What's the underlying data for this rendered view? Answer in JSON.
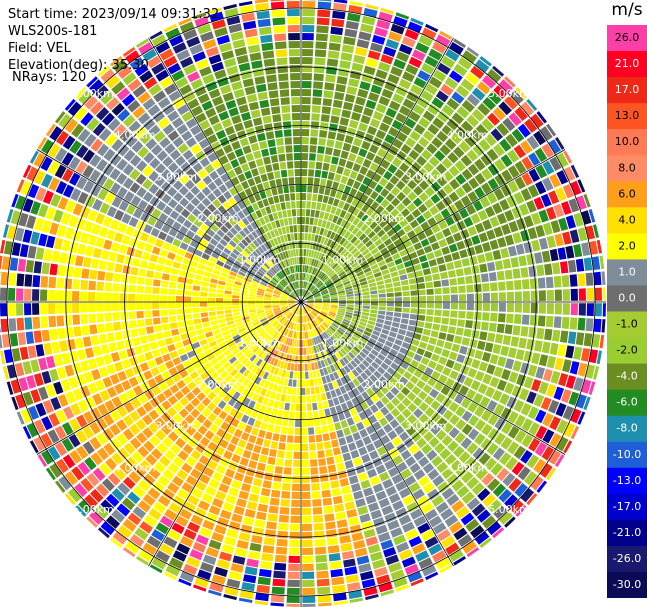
{
  "header": {
    "start_time": "Start time: 2023/09/14 09:31:32",
    "instrument": "WLS200s-181",
    "field": "Field: VEL",
    "elevation": "Elevation(deg): 35.30",
    "nrays": "NRays: 120"
  },
  "range_labels": [
    "1.00km",
    "2.00km",
    "3.00km",
    "4.00km",
    "5.00km"
  ],
  "colorbar": {
    "unit": "m/s",
    "levels": [
      {
        "label": "26.0",
        "color": "#ff3fa8"
      },
      {
        "label": "21.0",
        "color": "#ff0022"
      },
      {
        "label": "17.0",
        "color": "#f02818"
      },
      {
        "label": "13.0",
        "color": "#ff5522"
      },
      {
        "label": "10.0",
        "color": "#ff7a55"
      },
      {
        "label": "8.0",
        "color": "#ff8c66"
      },
      {
        "label": "6.0",
        "color": "#ff9f1a"
      },
      {
        "label": "4.0",
        "color": "#ffe000"
      },
      {
        "label": "2.0",
        "color": "#ffff00"
      },
      {
        "label": "1.0",
        "color": "#7f8c9a"
      },
      {
        "label": "0.0",
        "color": "#6e6e6e"
      },
      {
        "label": "-1.0",
        "color": "#a6cc33"
      },
      {
        "label": "-2.0",
        "color": "#9acd32"
      },
      {
        "label": "-4.0",
        "color": "#6b8e23"
      },
      {
        "label": "-6.0",
        "color": "#228b22"
      },
      {
        "label": "-8.0",
        "color": "#1f8fb0"
      },
      {
        "label": "-10.0",
        "color": "#1e5fd8"
      },
      {
        "label": "-13.0",
        "color": "#0000ff"
      },
      {
        "label": "-17.0",
        "color": "#0000cd"
      },
      {
        "label": "-21.0",
        "color": "#00008b"
      },
      {
        "label": "-26.0",
        "color": "#191970"
      },
      {
        "label": "-30.0",
        "color": "#0b0b55"
      }
    ]
  }
}
